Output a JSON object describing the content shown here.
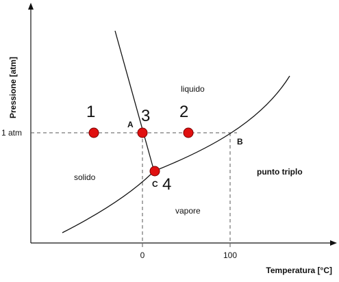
{
  "axes": {
    "y_label": "Pressione [atm]",
    "x_label": "Temperatura [°C]",
    "y_tick": "1 atm",
    "x_tick_zero": "0",
    "x_tick_hundred": "100"
  },
  "regions": {
    "liquid": "liquido",
    "solid": "solido",
    "vapour": "vapore"
  },
  "points": {
    "a": "A",
    "b": "B",
    "c": "C"
  },
  "numbers": {
    "one": "1",
    "two": "2",
    "three": "3",
    "four": "4"
  },
  "note": "punto triplo",
  "colors": {
    "marker_fill": "#e01010",
    "marker_stroke": "#7a0000",
    "line": "#111111",
    "dash": "#555555"
  }
}
